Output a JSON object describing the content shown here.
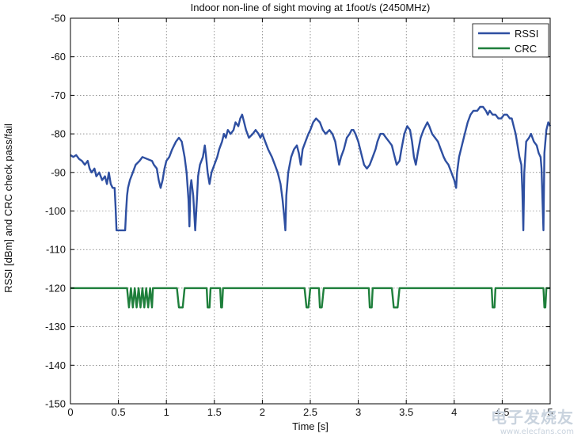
{
  "chart_data": {
    "type": "line",
    "title": "Indoor non-line of sight moving at 1foot/s (2450MHz)",
    "xlabel": "Time [s]",
    "ylabel": "RSSI [dBm] and CRC check pass/fail",
    "xlim": [
      0,
      5
    ],
    "ylim": [
      -150,
      -50
    ],
    "xticks": [
      0,
      0.5,
      1,
      1.5,
      2,
      2.5,
      3,
      3.5,
      4,
      4.5,
      5
    ],
    "xtick_labels": [
      "0",
      "0.5",
      "1",
      "1.5",
      "2",
      "2.5",
      "3",
      "3.5",
      "4",
      "4.5",
      "5"
    ],
    "yticks": [
      -150,
      -140,
      -130,
      -120,
      -110,
      -100,
      -90,
      -80,
      -70,
      -60,
      -50
    ],
    "ytick_labels": [
      "-150",
      "-140",
      "-130",
      "-120",
      "-110",
      "-100",
      "-90",
      "-80",
      "-70",
      "-60",
      "-50"
    ],
    "grid": true,
    "legend_position": "top-right",
    "series": [
      {
        "name": "RSSI",
        "color": "#2e4fa1",
        "points": [
          [
            0,
            -85.5
          ],
          [
            0.03,
            -86
          ],
          [
            0.06,
            -85.5
          ],
          [
            0.09,
            -86.5
          ],
          [
            0.12,
            -87
          ],
          [
            0.15,
            -88
          ],
          [
            0.18,
            -87
          ],
          [
            0.2,
            -89
          ],
          [
            0.22,
            -90
          ],
          [
            0.25,
            -89
          ],
          [
            0.27,
            -91
          ],
          [
            0.3,
            -90
          ],
          [
            0.33,
            -92
          ],
          [
            0.36,
            -91
          ],
          [
            0.38,
            -93
          ],
          [
            0.4,
            -90
          ],
          [
            0.42,
            -93
          ],
          [
            0.44,
            -94
          ],
          [
            0.46,
            -94
          ],
          [
            0.47,
            -99
          ],
          [
            0.48,
            -105
          ],
          [
            0.5,
            -105
          ],
          [
            0.53,
            -105
          ],
          [
            0.57,
            -105
          ],
          [
            0.58,
            -100
          ],
          [
            0.59,
            -96
          ],
          [
            0.6,
            -94
          ],
          [
            0.62,
            -92
          ],
          [
            0.65,
            -90
          ],
          [
            0.68,
            -88
          ],
          [
            0.72,
            -87
          ],
          [
            0.75,
            -86
          ],
          [
            0.8,
            -86.5
          ],
          [
            0.85,
            -87
          ],
          [
            0.87,
            -88
          ],
          [
            0.9,
            -89
          ],
          [
            0.92,
            -92
          ],
          [
            0.94,
            -94
          ],
          [
            0.96,
            -92
          ],
          [
            0.98,
            -89
          ],
          [
            1.0,
            -87
          ],
          [
            1.03,
            -86
          ],
          [
            1.06,
            -84
          ],
          [
            1.1,
            -82
          ],
          [
            1.13,
            -81
          ],
          [
            1.16,
            -82
          ],
          [
            1.19,
            -86
          ],
          [
            1.21,
            -90
          ],
          [
            1.23,
            -97
          ],
          [
            1.24,
            -104
          ],
          [
            1.25,
            -94
          ],
          [
            1.26,
            -92
          ],
          [
            1.28,
            -96
          ],
          [
            1.3,
            -105
          ],
          [
            1.32,
            -96
          ],
          [
            1.33,
            -91
          ],
          [
            1.35,
            -88
          ],
          [
            1.38,
            -86
          ],
          [
            1.4,
            -83
          ],
          [
            1.41,
            -85
          ],
          [
            1.43,
            -90
          ],
          [
            1.45,
            -93
          ],
          [
            1.47,
            -90
          ],
          [
            1.5,
            -88
          ],
          [
            1.53,
            -86
          ],
          [
            1.55,
            -84
          ],
          [
            1.58,
            -82
          ],
          [
            1.6,
            -80
          ],
          [
            1.62,
            -81
          ],
          [
            1.64,
            -79
          ],
          [
            1.67,
            -80
          ],
          [
            1.7,
            -79
          ],
          [
            1.72,
            -77
          ],
          [
            1.75,
            -78
          ],
          [
            1.77,
            -76
          ],
          [
            1.79,
            -75
          ],
          [
            1.81,
            -77
          ],
          [
            1.83,
            -79
          ],
          [
            1.86,
            -81
          ],
          [
            1.9,
            -80
          ],
          [
            1.93,
            -79
          ],
          [
            1.96,
            -80
          ],
          [
            1.98,
            -81
          ],
          [
            2.0,
            -80
          ],
          [
            2.03,
            -82
          ],
          [
            2.06,
            -84
          ],
          [
            2.1,
            -86
          ],
          [
            2.13,
            -88
          ],
          [
            2.16,
            -90
          ],
          [
            2.19,
            -93
          ],
          [
            2.21,
            -97
          ],
          [
            2.23,
            -102
          ],
          [
            2.24,
            -105
          ],
          [
            2.25,
            -96
          ],
          [
            2.27,
            -90
          ],
          [
            2.3,
            -86
          ],
          [
            2.33,
            -84
          ],
          [
            2.36,
            -83
          ],
          [
            2.38,
            -85
          ],
          [
            2.4,
            -88
          ],
          [
            2.42,
            -84
          ],
          [
            2.45,
            -82
          ],
          [
            2.48,
            -80
          ],
          [
            2.5,
            -79
          ],
          [
            2.53,
            -77
          ],
          [
            2.56,
            -76
          ],
          [
            2.6,
            -77
          ],
          [
            2.63,
            -79
          ],
          [
            2.66,
            -80
          ],
          [
            2.7,
            -79
          ],
          [
            2.73,
            -80
          ],
          [
            2.76,
            -82
          ],
          [
            2.78,
            -85
          ],
          [
            2.8,
            -88
          ],
          [
            2.82,
            -86
          ],
          [
            2.85,
            -84
          ],
          [
            2.88,
            -81
          ],
          [
            2.91,
            -80
          ],
          [
            2.93,
            -79
          ],
          [
            2.95,
            -79
          ],
          [
            2.97,
            -80
          ],
          [
            3.0,
            -82
          ],
          [
            3.03,
            -85
          ],
          [
            3.06,
            -88
          ],
          [
            3.09,
            -89
          ],
          [
            3.12,
            -88
          ],
          [
            3.15,
            -86
          ],
          [
            3.18,
            -84
          ],
          [
            3.2,
            -82
          ],
          [
            3.23,
            -80
          ],
          [
            3.26,
            -80
          ],
          [
            3.29,
            -81
          ],
          [
            3.32,
            -82
          ],
          [
            3.35,
            -83
          ],
          [
            3.37,
            -85
          ],
          [
            3.4,
            -88
          ],
          [
            3.43,
            -87
          ],
          [
            3.45,
            -84
          ],
          [
            3.48,
            -80
          ],
          [
            3.51,
            -78
          ],
          [
            3.54,
            -79
          ],
          [
            3.56,
            -82
          ],
          [
            3.58,
            -86
          ],
          [
            3.6,
            -88
          ],
          [
            3.62,
            -85
          ],
          [
            3.65,
            -81
          ],
          [
            3.68,
            -79
          ],
          [
            3.7,
            -78
          ],
          [
            3.72,
            -77
          ],
          [
            3.74,
            -78
          ],
          [
            3.77,
            -80
          ],
          [
            3.8,
            -81
          ],
          [
            3.83,
            -82
          ],
          [
            3.86,
            -84
          ],
          [
            3.89,
            -86
          ],
          [
            3.91,
            -87
          ],
          [
            3.94,
            -88
          ],
          [
            3.97,
            -90
          ],
          [
            4.0,
            -92
          ],
          [
            4.02,
            -94
          ],
          [
            4.03,
            -90
          ],
          [
            4.05,
            -86
          ],
          [
            4.08,
            -83
          ],
          [
            4.11,
            -80
          ],
          [
            4.14,
            -77
          ],
          [
            4.17,
            -75
          ],
          [
            4.2,
            -74
          ],
          [
            4.24,
            -74
          ],
          [
            4.27,
            -73
          ],
          [
            4.3,
            -73
          ],
          [
            4.33,
            -74
          ],
          [
            4.35,
            -75
          ],
          [
            4.37,
            -74
          ],
          [
            4.4,
            -75
          ],
          [
            4.43,
            -75
          ],
          [
            4.46,
            -76
          ],
          [
            4.49,
            -76
          ],
          [
            4.52,
            -75
          ],
          [
            4.55,
            -75
          ],
          [
            4.58,
            -76
          ],
          [
            4.6,
            -76
          ],
          [
            4.62,
            -78
          ],
          [
            4.64,
            -80
          ],
          [
            4.66,
            -83
          ],
          [
            4.68,
            -86
          ],
          [
            4.7,
            -88
          ],
          [
            4.71,
            -95
          ],
          [
            4.72,
            -105
          ],
          [
            4.73,
            -90
          ],
          [
            4.75,
            -82
          ],
          [
            4.78,
            -81
          ],
          [
            4.8,
            -80
          ],
          [
            4.83,
            -82
          ],
          [
            4.86,
            -83
          ],
          [
            4.88,
            -85
          ],
          [
            4.9,
            -86
          ],
          [
            4.91,
            -89
          ],
          [
            4.92,
            -97
          ],
          [
            4.93,
            -105
          ],
          [
            4.94,
            -85
          ],
          [
            4.96,
            -79
          ],
          [
            4.98,
            -77
          ],
          [
            5.0,
            -78
          ]
        ]
      },
      {
        "name": "CRC",
        "color": "#1e7f3b",
        "points": [
          [
            0,
            -120
          ],
          [
            0.59,
            -120
          ],
          [
            0.61,
            -125
          ],
          [
            0.63,
            -120
          ],
          [
            0.65,
            -125
          ],
          [
            0.67,
            -120
          ],
          [
            0.69,
            -125
          ],
          [
            0.71,
            -120
          ],
          [
            0.73,
            -125
          ],
          [
            0.75,
            -120
          ],
          [
            0.77,
            -125
          ],
          [
            0.79,
            -120
          ],
          [
            0.81,
            -125
          ],
          [
            0.83,
            -120
          ],
          [
            0.85,
            -125
          ],
          [
            0.86,
            -120
          ],
          [
            1.11,
            -120
          ],
          [
            1.13,
            -125
          ],
          [
            1.17,
            -125
          ],
          [
            1.19,
            -120
          ],
          [
            1.42,
            -120
          ],
          [
            1.43,
            -125
          ],
          [
            1.45,
            -125
          ],
          [
            1.46,
            -120
          ],
          [
            1.56,
            -120
          ],
          [
            1.57,
            -125
          ],
          [
            1.58,
            -125
          ],
          [
            1.59,
            -120
          ],
          [
            2.44,
            -120
          ],
          [
            2.46,
            -125
          ],
          [
            2.48,
            -125
          ],
          [
            2.5,
            -120
          ],
          [
            2.59,
            -120
          ],
          [
            2.6,
            -125
          ],
          [
            2.62,
            -125
          ],
          [
            2.64,
            -120
          ],
          [
            3.11,
            -120
          ],
          [
            3.12,
            -125
          ],
          [
            3.14,
            -125
          ],
          [
            3.15,
            -120
          ],
          [
            3.35,
            -120
          ],
          [
            3.37,
            -125
          ],
          [
            3.41,
            -125
          ],
          [
            3.43,
            -120
          ],
          [
            4.39,
            -120
          ],
          [
            4.4,
            -125
          ],
          [
            4.42,
            -125
          ],
          [
            4.43,
            -120
          ],
          [
            4.93,
            -120
          ],
          [
            4.94,
            -125
          ],
          [
            4.95,
            -125
          ],
          [
            4.96,
            -120
          ],
          [
            5.0,
            -120
          ]
        ]
      }
    ]
  },
  "watermark": {
    "text_cn": "电子发烧友",
    "url": "www.elecfans.com"
  }
}
